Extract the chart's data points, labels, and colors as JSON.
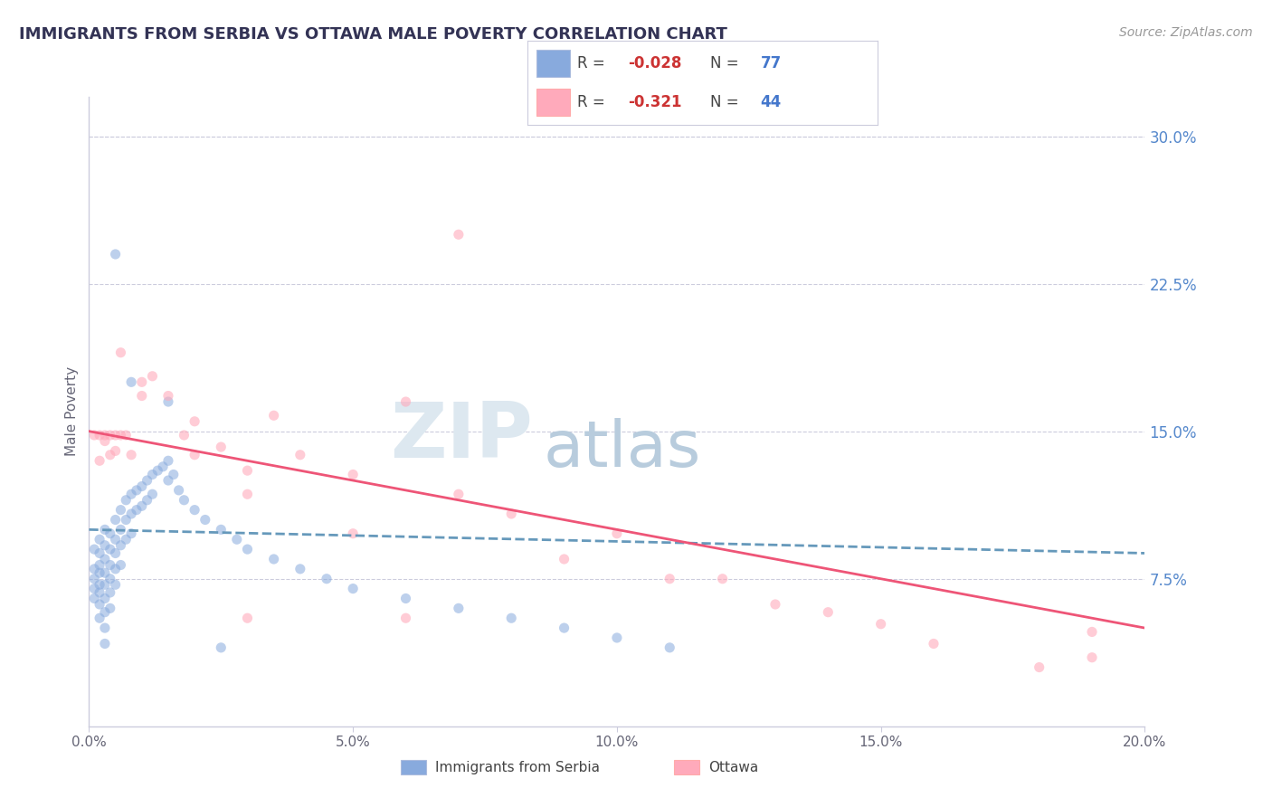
{
  "title": "IMMIGRANTS FROM SERBIA VS OTTAWA MALE POVERTY CORRELATION CHART",
  "source": "Source: ZipAtlas.com",
  "ylabel_left": "Male Poverty",
  "x_min": 0.0,
  "x_max": 0.2,
  "y_min": 0.0,
  "y_max": 0.32,
  "y_ticks_right": [
    0.075,
    0.15,
    0.225,
    0.3
  ],
  "y_tick_labels_right": [
    "7.5%",
    "15.0%",
    "22.5%",
    "30.0%"
  ],
  "legend_label1": "Immigrants from Serbia",
  "legend_label2": "Ottawa",
  "R1": "-0.028",
  "N1": "77",
  "R2": "-0.321",
  "N2": "44",
  "color_serbia": "#88aadd",
  "color_ottawa": "#ffaabb",
  "color_serbia_line": "#6699bb",
  "color_ottawa_line": "#ee5577",
  "grid_color": "#ccccdd",
  "watermark_zip": "ZIP",
  "watermark_atlas": "atlas",
  "watermark_color_zip": "#dde8f0",
  "watermark_color_atlas": "#b8ccdd",
  "title_color": "#333355",
  "tick_color_right": "#5588cc",
  "tick_color_bottom": "#666677",
  "serbia_x": [
    0.001,
    0.001,
    0.001,
    0.001,
    0.001,
    0.002,
    0.002,
    0.002,
    0.002,
    0.002,
    0.002,
    0.002,
    0.002,
    0.003,
    0.003,
    0.003,
    0.003,
    0.003,
    0.003,
    0.003,
    0.003,
    0.003,
    0.004,
    0.004,
    0.004,
    0.004,
    0.004,
    0.004,
    0.005,
    0.005,
    0.005,
    0.005,
    0.005,
    0.006,
    0.006,
    0.006,
    0.006,
    0.007,
    0.007,
    0.007,
    0.008,
    0.008,
    0.008,
    0.009,
    0.009,
    0.01,
    0.01,
    0.011,
    0.011,
    0.012,
    0.012,
    0.013,
    0.014,
    0.015,
    0.015,
    0.016,
    0.017,
    0.018,
    0.02,
    0.022,
    0.025,
    0.028,
    0.03,
    0.035,
    0.04,
    0.045,
    0.05,
    0.06,
    0.07,
    0.08,
    0.09,
    0.1,
    0.11,
    0.005,
    0.008,
    0.015,
    0.025
  ],
  "serbia_y": [
    0.09,
    0.08,
    0.075,
    0.07,
    0.065,
    0.095,
    0.088,
    0.082,
    0.078,
    0.072,
    0.068,
    0.062,
    0.055,
    0.1,
    0.092,
    0.085,
    0.078,
    0.072,
    0.065,
    0.058,
    0.05,
    0.042,
    0.098,
    0.09,
    0.082,
    0.075,
    0.068,
    0.06,
    0.105,
    0.095,
    0.088,
    0.08,
    0.072,
    0.11,
    0.1,
    0.092,
    0.082,
    0.115,
    0.105,
    0.095,
    0.118,
    0.108,
    0.098,
    0.12,
    0.11,
    0.122,
    0.112,
    0.125,
    0.115,
    0.128,
    0.118,
    0.13,
    0.132,
    0.135,
    0.125,
    0.128,
    0.12,
    0.115,
    0.11,
    0.105,
    0.1,
    0.095,
    0.09,
    0.085,
    0.08,
    0.075,
    0.07,
    0.065,
    0.06,
    0.055,
    0.05,
    0.045,
    0.04,
    0.24,
    0.175,
    0.165,
    0.04
  ],
  "ottawa_x": [
    0.001,
    0.002,
    0.002,
    0.003,
    0.003,
    0.004,
    0.004,
    0.005,
    0.005,
    0.006,
    0.006,
    0.007,
    0.008,
    0.01,
    0.012,
    0.015,
    0.018,
    0.02,
    0.025,
    0.03,
    0.035,
    0.04,
    0.05,
    0.06,
    0.07,
    0.08,
    0.1,
    0.12,
    0.14,
    0.16,
    0.18,
    0.19,
    0.19,
    0.01,
    0.02,
    0.03,
    0.05,
    0.07,
    0.09,
    0.11,
    0.13,
    0.15,
    0.03,
    0.06
  ],
  "ottawa_y": [
    0.148,
    0.148,
    0.135,
    0.148,
    0.145,
    0.148,
    0.138,
    0.148,
    0.14,
    0.148,
    0.19,
    0.148,
    0.138,
    0.175,
    0.178,
    0.168,
    0.148,
    0.155,
    0.142,
    0.13,
    0.158,
    0.138,
    0.128,
    0.165,
    0.118,
    0.108,
    0.098,
    0.075,
    0.058,
    0.042,
    0.03,
    0.048,
    0.035,
    0.168,
    0.138,
    0.118,
    0.098,
    0.25,
    0.085,
    0.075,
    0.062,
    0.052,
    0.055,
    0.055
  ]
}
